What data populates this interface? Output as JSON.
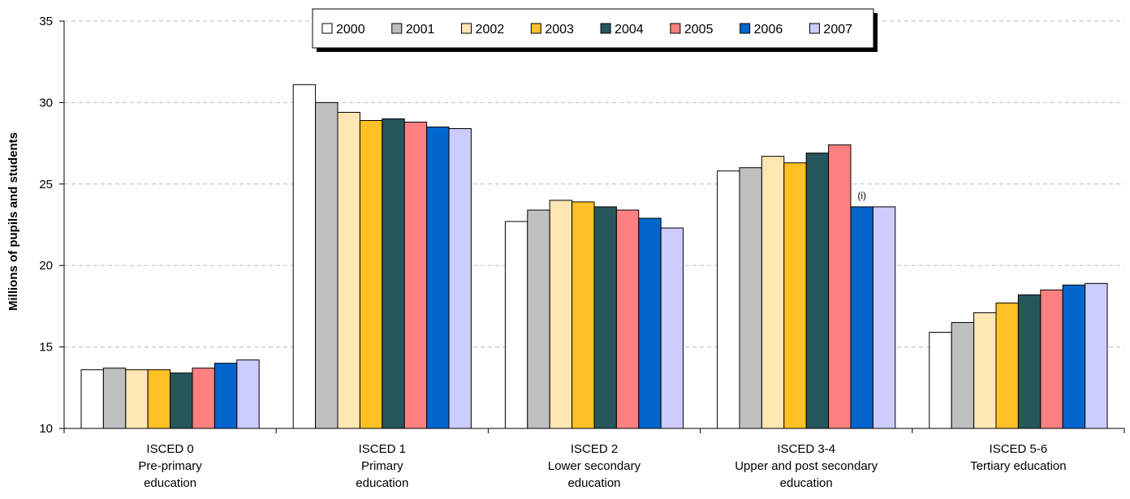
{
  "chart_data": {
    "type": "bar",
    "ylabel": "Millions of pupils and students",
    "xlabel": "",
    "ylim": [
      10,
      35
    ],
    "yticks": [
      10,
      15,
      20,
      25,
      30,
      35
    ],
    "grid": true,
    "legend_position": "top-center",
    "categories": [
      [
        "ISCED 0",
        "Pre-primary",
        "education"
      ],
      [
        "ISCED 1",
        "Primary",
        "education"
      ],
      [
        "ISCED 2",
        "Lower secondary",
        "education"
      ],
      [
        "ISCED 3-4",
        "Upper and post secondary",
        "education"
      ],
      [
        "ISCED 5-6",
        "Tertiary education"
      ]
    ],
    "series": [
      {
        "name": "2000",
        "color": "#ffffff",
        "values": [
          13.6,
          31.1,
          22.7,
          25.8,
          15.9
        ]
      },
      {
        "name": "2001",
        "color": "#bfbfbf",
        "values": [
          13.7,
          30.0,
          23.4,
          26.0,
          16.5
        ]
      },
      {
        "name": "2002",
        "color": "#ffe6b3",
        "values": [
          13.6,
          29.4,
          24.0,
          26.7,
          17.1
        ]
      },
      {
        "name": "2003",
        "color": "#ffc125",
        "values": [
          13.6,
          28.9,
          23.9,
          26.3,
          17.7
        ]
      },
      {
        "name": "2004",
        "color": "#27575c",
        "values": [
          13.4,
          29.0,
          23.6,
          26.9,
          18.2
        ]
      },
      {
        "name": "2005",
        "color": "#ff8080",
        "values": [
          13.7,
          28.8,
          23.4,
          27.4,
          18.5
        ]
      },
      {
        "name": "2006",
        "color": "#0066cc",
        "values": [
          14.0,
          28.5,
          22.9,
          23.6,
          18.8
        ]
      },
      {
        "name": "2007",
        "color": "#ccccff",
        "values": [
          14.2,
          28.4,
          22.3,
          23.6,
          18.9
        ]
      }
    ],
    "annotations": [
      {
        "text": "(i)",
        "category_index": 3,
        "series_index": 6
      }
    ]
  }
}
